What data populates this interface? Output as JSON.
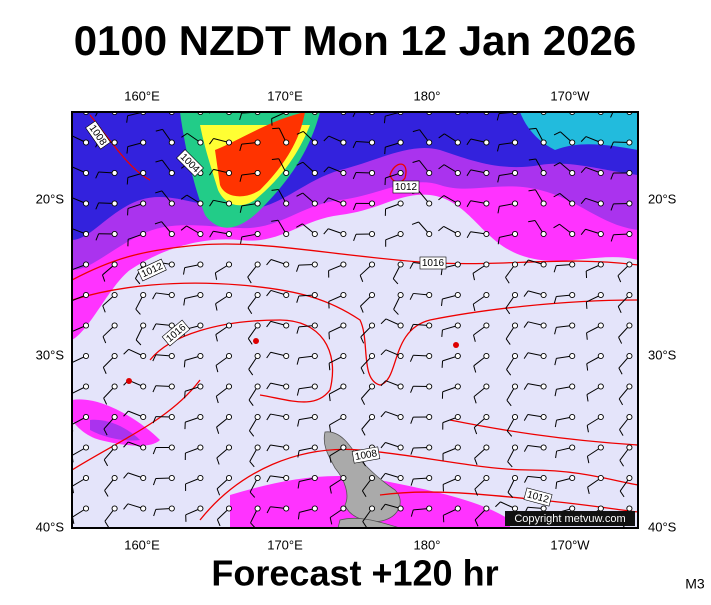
{
  "header": {
    "title": "0100 NZDT Mon 12 Jan 2026"
  },
  "map": {
    "top_lon_labels": [
      "160°E",
      "170°E",
      "180°",
      "170°W"
    ],
    "bottom_lon_labels": [
      "160°E",
      "170°E",
      "180°",
      "170°W"
    ],
    "left_lat_labels": [
      "20°S",
      "30°S",
      "40°S"
    ],
    "right_lat_labels": [
      "20°S",
      "30°S",
      "40°S"
    ],
    "isobar_labels": [
      "1008",
      "1004",
      "1012",
      "1012",
      "1016",
      "1016",
      "1008",
      "1012"
    ],
    "copyright": "Copyright metvuw.com"
  },
  "footer": {
    "forecast": "Forecast +120 hr",
    "model": "M3"
  }
}
